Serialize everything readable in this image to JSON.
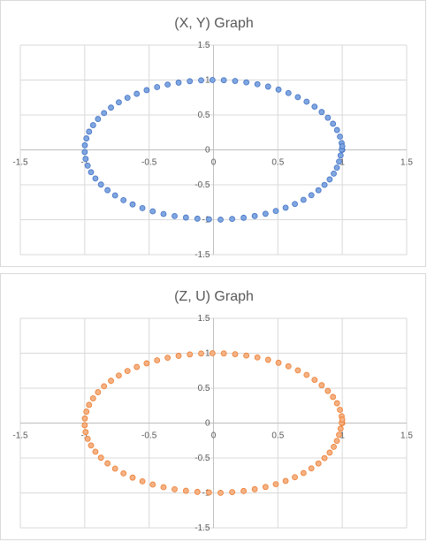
{
  "chart_data": [
    {
      "type": "scatter",
      "title": "(X, Y) Graph",
      "xlabel": "",
      "ylabel": "",
      "xlim": [
        -1.5,
        1.5
      ],
      "ylim": [
        -1.5,
        1.5
      ],
      "xticks": [
        -1.5,
        -1,
        -0.5,
        0,
        0.5,
        1,
        1.5
      ],
      "yticks": [
        -1.5,
        -1,
        -0.5,
        0,
        0.5,
        1,
        1.5
      ],
      "xtick_labels": [
        "-1.5",
        "-1",
        "-0.5",
        "0",
        "0.5",
        "1",
        "1.5"
      ],
      "ytick_labels": [
        "-1.5",
        "-1",
        "-0.5",
        "0",
        "0.5",
        "1",
        "1.5"
      ],
      "grid": true,
      "legend": "none",
      "marker_fill": "#4472c4",
      "marker_fill_light": "#7fa6e0",
      "x": [
        1,
        0.995,
        0.982,
        0.959,
        0.928,
        0.888,
        0.84,
        0.785,
        0.723,
        0.655,
        0.582,
        0.505,
        0.424,
        0.341,
        0.255,
        0.168,
        0.08,
        -0.008,
        -0.096,
        -0.184,
        -0.271,
        -0.356,
        -0.438,
        -0.519,
        -0.596,
        -0.668,
        -0.735,
        -0.796,
        -0.85,
        -0.897,
        -0.935,
        -0.966,
        -0.987,
        -0.999,
        -1,
        -0.993,
        -0.977,
        -0.951,
        -0.917,
        -0.874,
        -0.823,
        -0.764,
        -0.699,
        -0.628,
        -0.552,
        -0.472,
        -0.388,
        -0.302,
        -0.214,
        -0.125,
        -0.035,
        0.055,
        0.145,
        0.234,
        0.32,
        0.404,
        0.484,
        0.56,
        0.632,
        0.699,
        0.76,
        0.815,
        0.862,
        0.902,
        0.934,
        0.958,
        0.975,
        0.987,
        0.996,
        1
      ],
      "y": [
        0,
        0.098,
        0.19,
        0.284,
        0.374,
        0.46,
        0.542,
        0.619,
        0.69,
        0.755,
        0.813,
        0.863,
        0.906,
        0.94,
        0.967,
        0.986,
        0.997,
        1,
        0.995,
        0.983,
        0.963,
        0.935,
        0.899,
        0.855,
        0.803,
        0.745,
        0.68,
        0.605,
        0.527,
        0.442,
        0.354,
        0.26,
        0.164,
        0.066,
        -0.031,
        -0.129,
        -0.226,
        -0.32,
        -0.41,
        -0.496,
        -0.577,
        -0.652,
        -0.72,
        -0.781,
        -0.834,
        -0.88,
        -0.918,
        -0.948,
        -0.969,
        -0.985,
        -0.994,
        -0.998,
        -0.989,
        -0.972,
        -0.947,
        -0.915,
        -0.875,
        -0.828,
        -0.775,
        -0.715,
        -0.649,
        -0.578,
        -0.502,
        -0.423,
        -0.34,
        -0.255,
        -0.168,
        -0.08,
        0.004,
        0.05
      ]
    },
    {
      "type": "scatter",
      "title": "(Z, U) Graph",
      "xlabel": "",
      "ylabel": "",
      "xlim": [
        -1.5,
        1.5
      ],
      "ylim": [
        -1.5,
        1.5
      ],
      "xticks": [
        -1.5,
        -1,
        -0.5,
        0,
        0.5,
        1,
        1.5
      ],
      "yticks": [
        -1.5,
        -1,
        -0.5,
        0,
        0.5,
        1,
        1.5
      ],
      "xtick_labels": [
        "-1.5",
        "-1",
        "-0.5",
        "0",
        "0.5",
        "1",
        "1.5"
      ],
      "ytick_labels": [
        "-1.5",
        "-1",
        "-0.5",
        "0",
        "0.5",
        "1",
        "1.5"
      ],
      "grid": true,
      "legend": "none",
      "marker_fill": "#ed7d31",
      "marker_fill_light": "#f4b183",
      "x": [
        1,
        0.995,
        0.982,
        0.959,
        0.928,
        0.888,
        0.84,
        0.785,
        0.723,
        0.655,
        0.582,
        0.505,
        0.424,
        0.341,
        0.255,
        0.168,
        0.08,
        -0.008,
        -0.096,
        -0.184,
        -0.271,
        -0.356,
        -0.438,
        -0.519,
        -0.596,
        -0.668,
        -0.735,
        -0.796,
        -0.85,
        -0.897,
        -0.935,
        -0.966,
        -0.987,
        -0.999,
        -1,
        -0.993,
        -0.977,
        -0.951,
        -0.917,
        -0.874,
        -0.823,
        -0.764,
        -0.699,
        -0.628,
        -0.552,
        -0.472,
        -0.388,
        -0.302,
        -0.214,
        -0.125,
        -0.035,
        0.055,
        0.145,
        0.234,
        0.32,
        0.404,
        0.484,
        0.56,
        0.632,
        0.699,
        0.76,
        0.815,
        0.862,
        0.902,
        0.934,
        0.958,
        0.975,
        0.987,
        0.996,
        1
      ],
      "y": [
        0,
        0.098,
        0.19,
        0.284,
        0.374,
        0.46,
        0.542,
        0.619,
        0.69,
        0.755,
        0.813,
        0.863,
        0.906,
        0.94,
        0.967,
        0.986,
        0.997,
        1,
        0.995,
        0.983,
        0.963,
        0.935,
        0.899,
        0.855,
        0.803,
        0.745,
        0.68,
        0.605,
        0.527,
        0.442,
        0.354,
        0.26,
        0.164,
        0.066,
        -0.031,
        -0.129,
        -0.226,
        -0.32,
        -0.41,
        -0.496,
        -0.577,
        -0.652,
        -0.72,
        -0.781,
        -0.834,
        -0.88,
        -0.918,
        -0.948,
        -0.969,
        -0.985,
        -0.994,
        -0.998,
        -0.989,
        -0.972,
        -0.947,
        -0.915,
        -0.875,
        -0.828,
        -0.775,
        -0.715,
        -0.649,
        -0.578,
        -0.502,
        -0.423,
        -0.34,
        -0.255,
        -0.168,
        -0.08,
        0.004,
        0.05
      ]
    }
  ]
}
